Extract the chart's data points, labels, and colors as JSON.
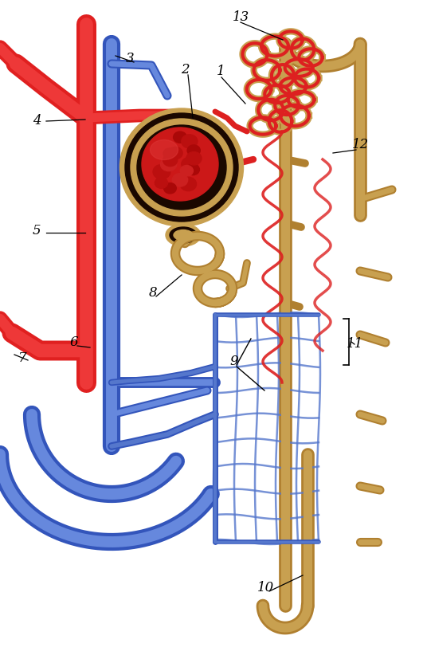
{
  "bg_color": "#ffffff",
  "red": "#cc2020",
  "red2": "#dd3030",
  "blue": "#3355bb",
  "blue2": "#5577cc",
  "tan": "#c8a060",
  "tan2": "#d4b070",
  "dark": "#1a0800",
  "black": "#000000",
  "label_fontsize": 12,
  "figw": 5.31,
  "figh": 8.32,
  "dpi": 100
}
